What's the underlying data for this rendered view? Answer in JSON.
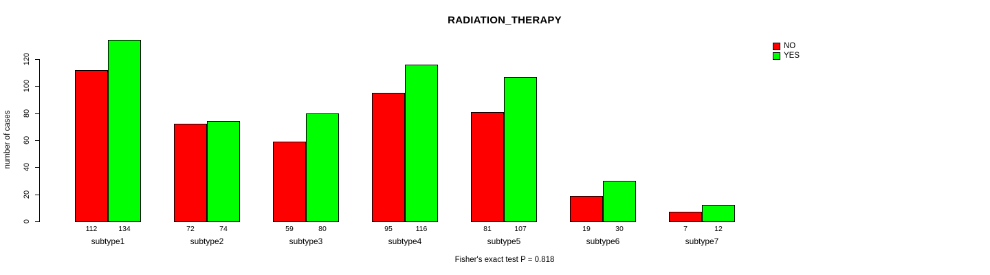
{
  "chart_data": {
    "type": "bar",
    "title": "RADIATION_THERAPY",
    "categories": [
      "subtype1",
      "subtype2",
      "subtype3",
      "subtype4",
      "subtype5",
      "subtype6",
      "subtype7"
    ],
    "series": [
      {
        "name": "NO",
        "color": "#ff0000",
        "values": [
          112,
          72,
          59,
          95,
          81,
          19,
          7
        ]
      },
      {
        "name": "YES",
        "color": "#00ff00",
        "values": [
          134,
          74,
          80,
          116,
          107,
          30,
          12
        ]
      }
    ],
    "xlabel": "",
    "ylabel": "number of cases",
    "ylim": [
      0,
      120
    ],
    "yticks": [
      0,
      20,
      40,
      60,
      80,
      100,
      120
    ],
    "bar_value_labels_shown": true,
    "grid": "off",
    "legend_position": "top-right",
    "annotation": "Fisher's exact test P = 0.818"
  }
}
